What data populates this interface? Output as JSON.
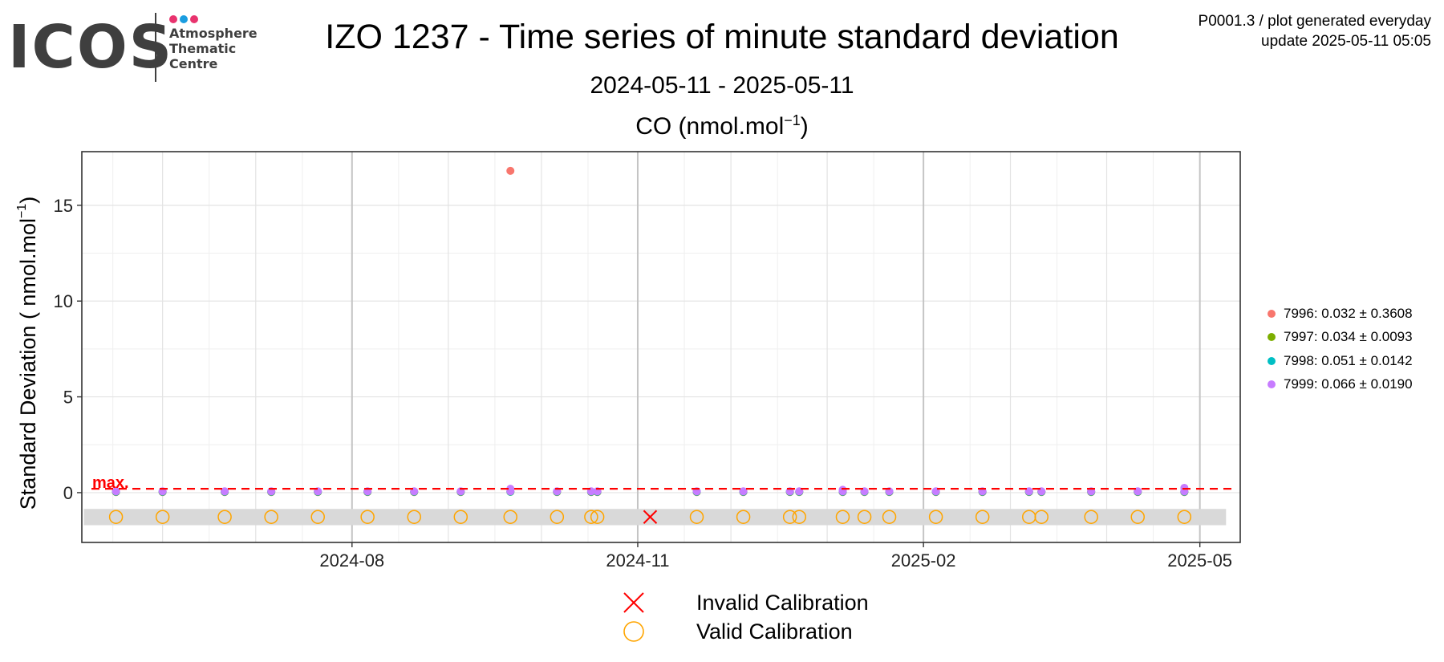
{
  "logo": {
    "word": "ICOS",
    "lines": [
      "Atmosphere",
      "Thematic",
      "Centre"
    ],
    "dot_colors": [
      "#e8336e",
      "#1a9de0",
      "#e8336e"
    ]
  },
  "header": {
    "title": "IZO 1237 - Time series of minute standard deviation",
    "subtitle": "2024-05-11 - 2025-05-11",
    "meta_line1": "P0001.3 / plot generated everyday",
    "meta_line2": "update  2025-05-11 05:05"
  },
  "panel": {
    "species": "CO",
    "unit_base": "nmol.mol",
    "unit_exp": "−1"
  },
  "legend": [
    {
      "label": "7996: 0.032 ± 0.3608",
      "color": "#f8766d"
    },
    {
      "label": "7997: 0.034 ± 0.0093",
      "color": "#7cae00"
    },
    {
      "label": "7998: 0.051 ± 0.0142",
      "color": "#00bfc4"
    },
    {
      "label": "7999: 0.066 ± 0.0190",
      "color": "#c77cff"
    }
  ],
  "calibration_legend": {
    "invalid": "Invalid Calibration",
    "valid": "Valid Calibration",
    "invalid_color": "#ff0000",
    "valid_color": "#ffa500"
  },
  "chart_data": {
    "type": "scatter",
    "ylabel_text": "Standard Deviation ( nmol.mol",
    "ylabel_exp": "−1",
    "ylim": [
      -2.6,
      17.8
    ],
    "xlim": [
      "2024-05-06",
      "2025-05-14"
    ],
    "x_ticks": [
      "2024-08",
      "2024-11",
      "2025-02",
      "2025-05"
    ],
    "y_ticks": [
      0,
      5,
      10,
      15
    ],
    "max_line": {
      "label": "max.",
      "value": 0.2,
      "color": "#ff0000"
    },
    "calibration_band": [
      -1.7,
      -0.85
    ],
    "grid": true,
    "series": [
      {
        "name": "7996",
        "color": "#f8766d",
        "points": [
          [
            "2024-05-17",
            0.03
          ],
          [
            "2024-06-01",
            0.03
          ],
          [
            "2024-06-21",
            0.03
          ],
          [
            "2024-07-06",
            0.03
          ],
          [
            "2024-07-21",
            0.03
          ],
          [
            "2024-08-06",
            0.03
          ],
          [
            "2024-08-21",
            0.03
          ],
          [
            "2024-09-05",
            0.03
          ],
          [
            "2024-09-21",
            16.8
          ],
          [
            "2024-10-06",
            0.03
          ],
          [
            "2024-10-17",
            0.03
          ],
          [
            "2024-10-19",
            0.03
          ],
          [
            "2024-11-20",
            0.03
          ],
          [
            "2024-12-05",
            0.03
          ],
          [
            "2024-12-20",
            0.03
          ],
          [
            "2024-12-23",
            0.03
          ],
          [
            "2025-01-06",
            0.03
          ],
          [
            "2025-01-13",
            0.03
          ],
          [
            "2025-01-21",
            0.03
          ],
          [
            "2025-02-05",
            0.03
          ],
          [
            "2025-02-20",
            0.03
          ],
          [
            "2025-03-07",
            0.03
          ],
          [
            "2025-03-11",
            0.03
          ],
          [
            "2025-03-27",
            0.03
          ],
          [
            "2025-04-11",
            0.03
          ],
          [
            "2025-04-26",
            0.03
          ]
        ]
      },
      {
        "name": "7997",
        "color": "#7cae00",
        "points": [
          [
            "2024-05-17",
            0.04
          ],
          [
            "2024-06-01",
            0.04
          ],
          [
            "2024-06-21",
            0.04
          ],
          [
            "2024-07-06",
            0.04
          ],
          [
            "2024-07-21",
            0.04
          ],
          [
            "2024-08-06",
            0.04
          ],
          [
            "2024-08-21",
            0.04
          ],
          [
            "2024-09-05",
            0.04
          ],
          [
            "2024-09-21",
            0.04
          ],
          [
            "2024-10-06",
            0.04
          ],
          [
            "2024-10-17",
            0.04
          ],
          [
            "2024-10-19",
            0.04
          ],
          [
            "2024-11-20",
            0.04
          ],
          [
            "2024-12-05",
            0.04
          ],
          [
            "2024-12-20",
            0.04
          ],
          [
            "2024-12-23",
            0.04
          ],
          [
            "2025-01-06",
            0.04
          ],
          [
            "2025-01-13",
            0.04
          ],
          [
            "2025-01-21",
            0.04
          ],
          [
            "2025-02-05",
            0.04
          ],
          [
            "2025-02-20",
            0.04
          ],
          [
            "2025-03-07",
            0.04
          ],
          [
            "2025-03-11",
            0.04
          ],
          [
            "2025-03-27",
            0.04
          ],
          [
            "2025-04-11",
            0.04
          ],
          [
            "2025-04-26",
            0.04
          ]
        ]
      },
      {
        "name": "7998",
        "color": "#00bfc4",
        "points": [
          [
            "2024-05-17",
            0.05
          ],
          [
            "2024-06-01",
            0.05
          ],
          [
            "2024-06-21",
            0.05
          ],
          [
            "2024-07-06",
            0.05
          ],
          [
            "2024-07-21",
            0.05
          ],
          [
            "2024-08-06",
            0.05
          ],
          [
            "2024-08-21",
            0.05
          ],
          [
            "2024-09-05",
            0.05
          ],
          [
            "2024-09-21",
            0.05
          ],
          [
            "2024-10-06",
            0.05
          ],
          [
            "2024-10-17",
            0.05
          ],
          [
            "2024-10-19",
            0.05
          ],
          [
            "2024-11-20",
            0.05
          ],
          [
            "2024-12-05",
            0.05
          ],
          [
            "2024-12-20",
            0.05
          ],
          [
            "2024-12-23",
            0.05
          ],
          [
            "2025-01-06",
            0.05
          ],
          [
            "2025-01-13",
            0.05
          ],
          [
            "2025-01-21",
            0.05
          ],
          [
            "2025-02-05",
            0.05
          ],
          [
            "2025-02-20",
            0.05
          ],
          [
            "2025-03-07",
            0.05
          ],
          [
            "2025-03-11",
            0.05
          ],
          [
            "2025-03-27",
            0.05
          ],
          [
            "2025-04-11",
            0.05
          ],
          [
            "2025-04-26",
            0.05
          ]
        ]
      },
      {
        "name": "7999",
        "color": "#c77cff",
        "points": [
          [
            "2024-05-17",
            0.07
          ],
          [
            "2024-06-01",
            0.07
          ],
          [
            "2024-06-21",
            0.07
          ],
          [
            "2024-07-06",
            0.07
          ],
          [
            "2024-07-21",
            0.07
          ],
          [
            "2024-08-06",
            0.07
          ],
          [
            "2024-08-21",
            0.07
          ],
          [
            "2024-09-05",
            0.07
          ],
          [
            "2024-09-21",
            0.07
          ],
          [
            "2024-09-21",
            0.2
          ],
          [
            "2024-10-06",
            0.07
          ],
          [
            "2024-10-17",
            0.07
          ],
          [
            "2024-10-19",
            0.07
          ],
          [
            "2024-11-20",
            0.07
          ],
          [
            "2024-12-05",
            0.07
          ],
          [
            "2024-12-20",
            0.07
          ],
          [
            "2024-12-23",
            0.07
          ],
          [
            "2025-01-06",
            0.07
          ],
          [
            "2025-01-06",
            0.15
          ],
          [
            "2025-01-13",
            0.07
          ],
          [
            "2025-01-21",
            0.07
          ],
          [
            "2025-02-05",
            0.07
          ],
          [
            "2025-02-20",
            0.07
          ],
          [
            "2025-03-07",
            0.07
          ],
          [
            "2025-03-11",
            0.07
          ],
          [
            "2025-03-27",
            0.07
          ],
          [
            "2025-04-11",
            0.07
          ],
          [
            "2025-04-26",
            0.07
          ],
          [
            "2025-04-26",
            0.25
          ]
        ]
      }
    ],
    "calibrations_valid": [
      "2024-05-17",
      "2024-06-01",
      "2024-06-21",
      "2024-07-06",
      "2024-07-21",
      "2024-08-06",
      "2024-08-21",
      "2024-09-05",
      "2024-09-21",
      "2024-10-06",
      "2024-10-17",
      "2024-10-19",
      "2024-11-20",
      "2024-12-05",
      "2024-12-20",
      "2024-12-23",
      "2025-01-06",
      "2025-01-13",
      "2025-01-21",
      "2025-02-05",
      "2025-02-20",
      "2025-03-07",
      "2025-03-11",
      "2025-03-27",
      "2025-04-11",
      "2025-04-26"
    ],
    "calibrations_invalid": [
      "2024-11-05"
    ],
    "calibration_y": -1.27
  }
}
